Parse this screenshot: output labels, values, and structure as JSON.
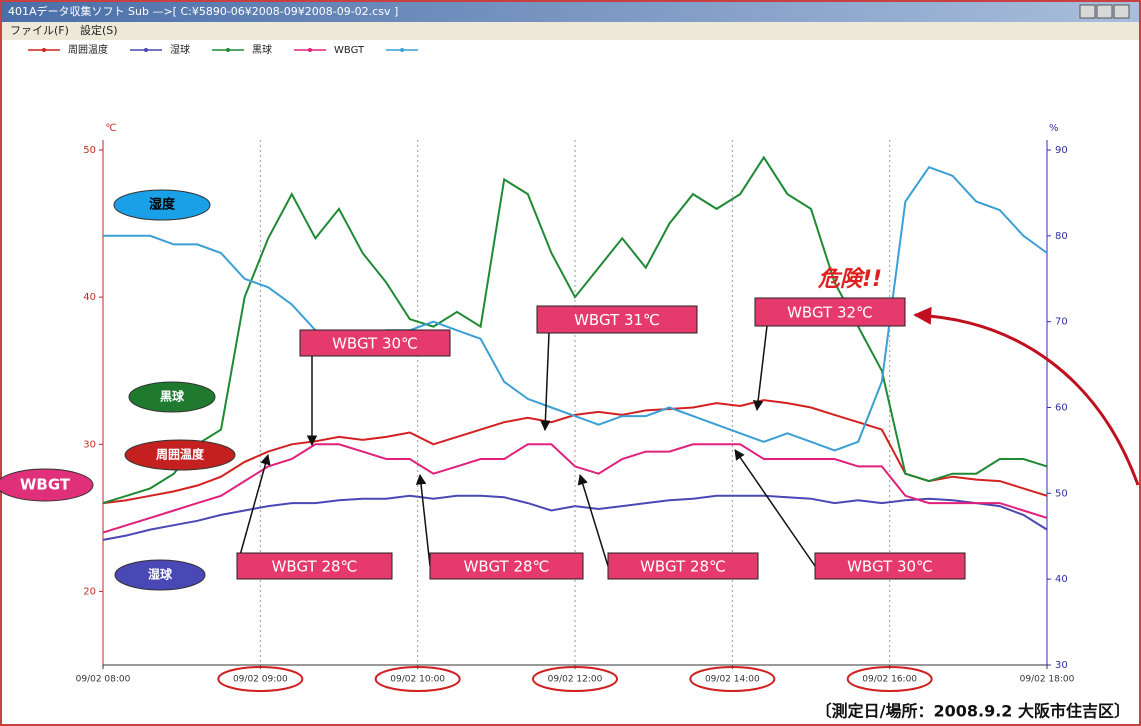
{
  "window": {
    "title": "401Aデータ収集ソフト Sub —>[ C:¥5890-06¥2008-09¥2008-09-02.csv ]",
    "menu": [
      "ファイル(F)",
      "設定(S)"
    ]
  },
  "footer": "〔測定日/場所：2008.9.2 大阪市住吉区〕",
  "chart_data": {
    "type": "line",
    "ylabel": "℃",
    "y2label": "%",
    "ylim": [
      15,
      50
    ],
    "yticks": [
      20,
      30,
      40,
      50
    ],
    "y2lim": [
      30,
      90
    ],
    "y2ticks": [
      30,
      40,
      50,
      60,
      70,
      80,
      90
    ],
    "xticks": [
      "09/02 08:00",
      "09/02 09:00",
      "09/02 10:00",
      "09/02 12:00",
      "09/02 14:00",
      "09/02 16:00",
      "09/02 18:00"
    ],
    "series": [
      {
        "name": "周囲温度",
        "color": "#d42020",
        "values": [
          26,
          26.2,
          26.5,
          26.8,
          27.2,
          27.8,
          28.8,
          29.5,
          30,
          30.2,
          30.5,
          30.3,
          30.5,
          30.8,
          30,
          30.5,
          31,
          31.5,
          31.8,
          31.5,
          32,
          32.2,
          32,
          32.3,
          32.4,
          32.5,
          32.8,
          32.6,
          33,
          32.8,
          32.5,
          32,
          31.5,
          31,
          28,
          27.5,
          27.8,
          27.6,
          27.5,
          27,
          26.5
        ]
      },
      {
        "name": "湿球",
        "color": "#4a48b4",
        "values": [
          23.5,
          23.8,
          24.2,
          24.5,
          24.8,
          25.2,
          25.5,
          25.8,
          26,
          26,
          26.2,
          26.3,
          26.3,
          26.5,
          26.3,
          26.5,
          26.5,
          26.4,
          26,
          25.5,
          25.8,
          25.6,
          25.8,
          26,
          26.2,
          26.3,
          26.5,
          26.5,
          26.5,
          26.4,
          26.3,
          26,
          26.2,
          26,
          26.2,
          26.3,
          26.2,
          26,
          25.8,
          25.2,
          24.2
        ]
      },
      {
        "name": "黒球",
        "color": "#1f8a34",
        "values": [
          26,
          26.5,
          27,
          28,
          30,
          31,
          40,
          44,
          47,
          44,
          46,
          43,
          41,
          38.5,
          38,
          39,
          38,
          48,
          47,
          43,
          40,
          42,
          44,
          42,
          45,
          47,
          46,
          47,
          49.5,
          47,
          46,
          41,
          38,
          35,
          28,
          27.5,
          28,
          28,
          29,
          29,
          28.5
        ]
      },
      {
        "name": "WBGT",
        "color": "#e0207a",
        "values": [
          24,
          24.5,
          25,
          25.5,
          26,
          26.5,
          27.5,
          28.5,
          29,
          30,
          30,
          29.5,
          29,
          29,
          28,
          28.5,
          29,
          29,
          30,
          30,
          28.5,
          28,
          29,
          29.5,
          29.5,
          30,
          30,
          30,
          29,
          29,
          29,
          29,
          28.5,
          28.5,
          26.5,
          26,
          26,
          26,
          26,
          25.5,
          25
        ]
      },
      {
        "name": "湿度",
        "color": "#3a9fd4",
        "axis": "y2",
        "values": [
          80,
          80,
          80,
          79,
          79,
          78,
          75,
          74,
          72,
          69,
          67,
          67,
          69,
          69,
          70,
          69,
          68,
          63,
          61,
          60,
          59,
          58,
          59,
          59,
          60,
          59,
          58,
          57,
          56,
          57,
          56,
          55,
          56,
          63,
          84,
          88,
          87,
          84,
          83,
          80,
          78
        ]
      }
    ],
    "annotations": [
      "WBGT 30℃",
      "WBGT 31℃",
      "WBGT 32℃",
      "WBGT 28℃",
      "WBGT 28℃",
      "WBGT 28℃",
      "WBGT 30℃",
      "危険!!"
    ]
  }
}
